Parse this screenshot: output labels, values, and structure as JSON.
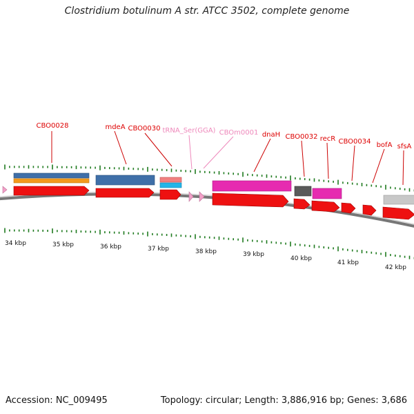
{
  "title": "Clostridium botulinum A str. ATCC 3502, complete genome",
  "footer": {
    "accession": "Accession: NC_009495",
    "topology": "Topology: circular; Length: 3,886,916 bp; Genes: 3,686"
  },
  "colors": {
    "cds": "#ee1111",
    "rna": "#f2a0c8",
    "backbone": "#888888",
    "tick": "#1e7a1e",
    "label_red": "#dd0000",
    "label_pink": "#ee88bb"
  },
  "kbp_labels": [
    "34 kbp",
    "35 kbp",
    "36 kbp",
    "37 kbp",
    "38 kbp",
    "39 kbp",
    "40 kbp",
    "41 kbp",
    "42 kbp"
  ],
  "gene_labels": [
    {
      "text": "CBO0028",
      "kind": "cds"
    },
    {
      "text": "mdeA",
      "kind": "cds"
    },
    {
      "text": "CBO0030",
      "kind": "cds"
    },
    {
      "text": "tRNA_Ser(GGA)",
      "kind": "rna"
    },
    {
      "text": "CBOm0001",
      "kind": "rna"
    },
    {
      "text": "dnaH",
      "kind": "cds"
    },
    {
      "text": "CBO0032",
      "kind": "cds"
    },
    {
      "text": "recR",
      "kind": "cds"
    },
    {
      "text": "CBO0034",
      "kind": "cds"
    },
    {
      "text": "bofA",
      "kind": "cds"
    },
    {
      "text": "sfsA",
      "kind": "cds"
    }
  ]
}
